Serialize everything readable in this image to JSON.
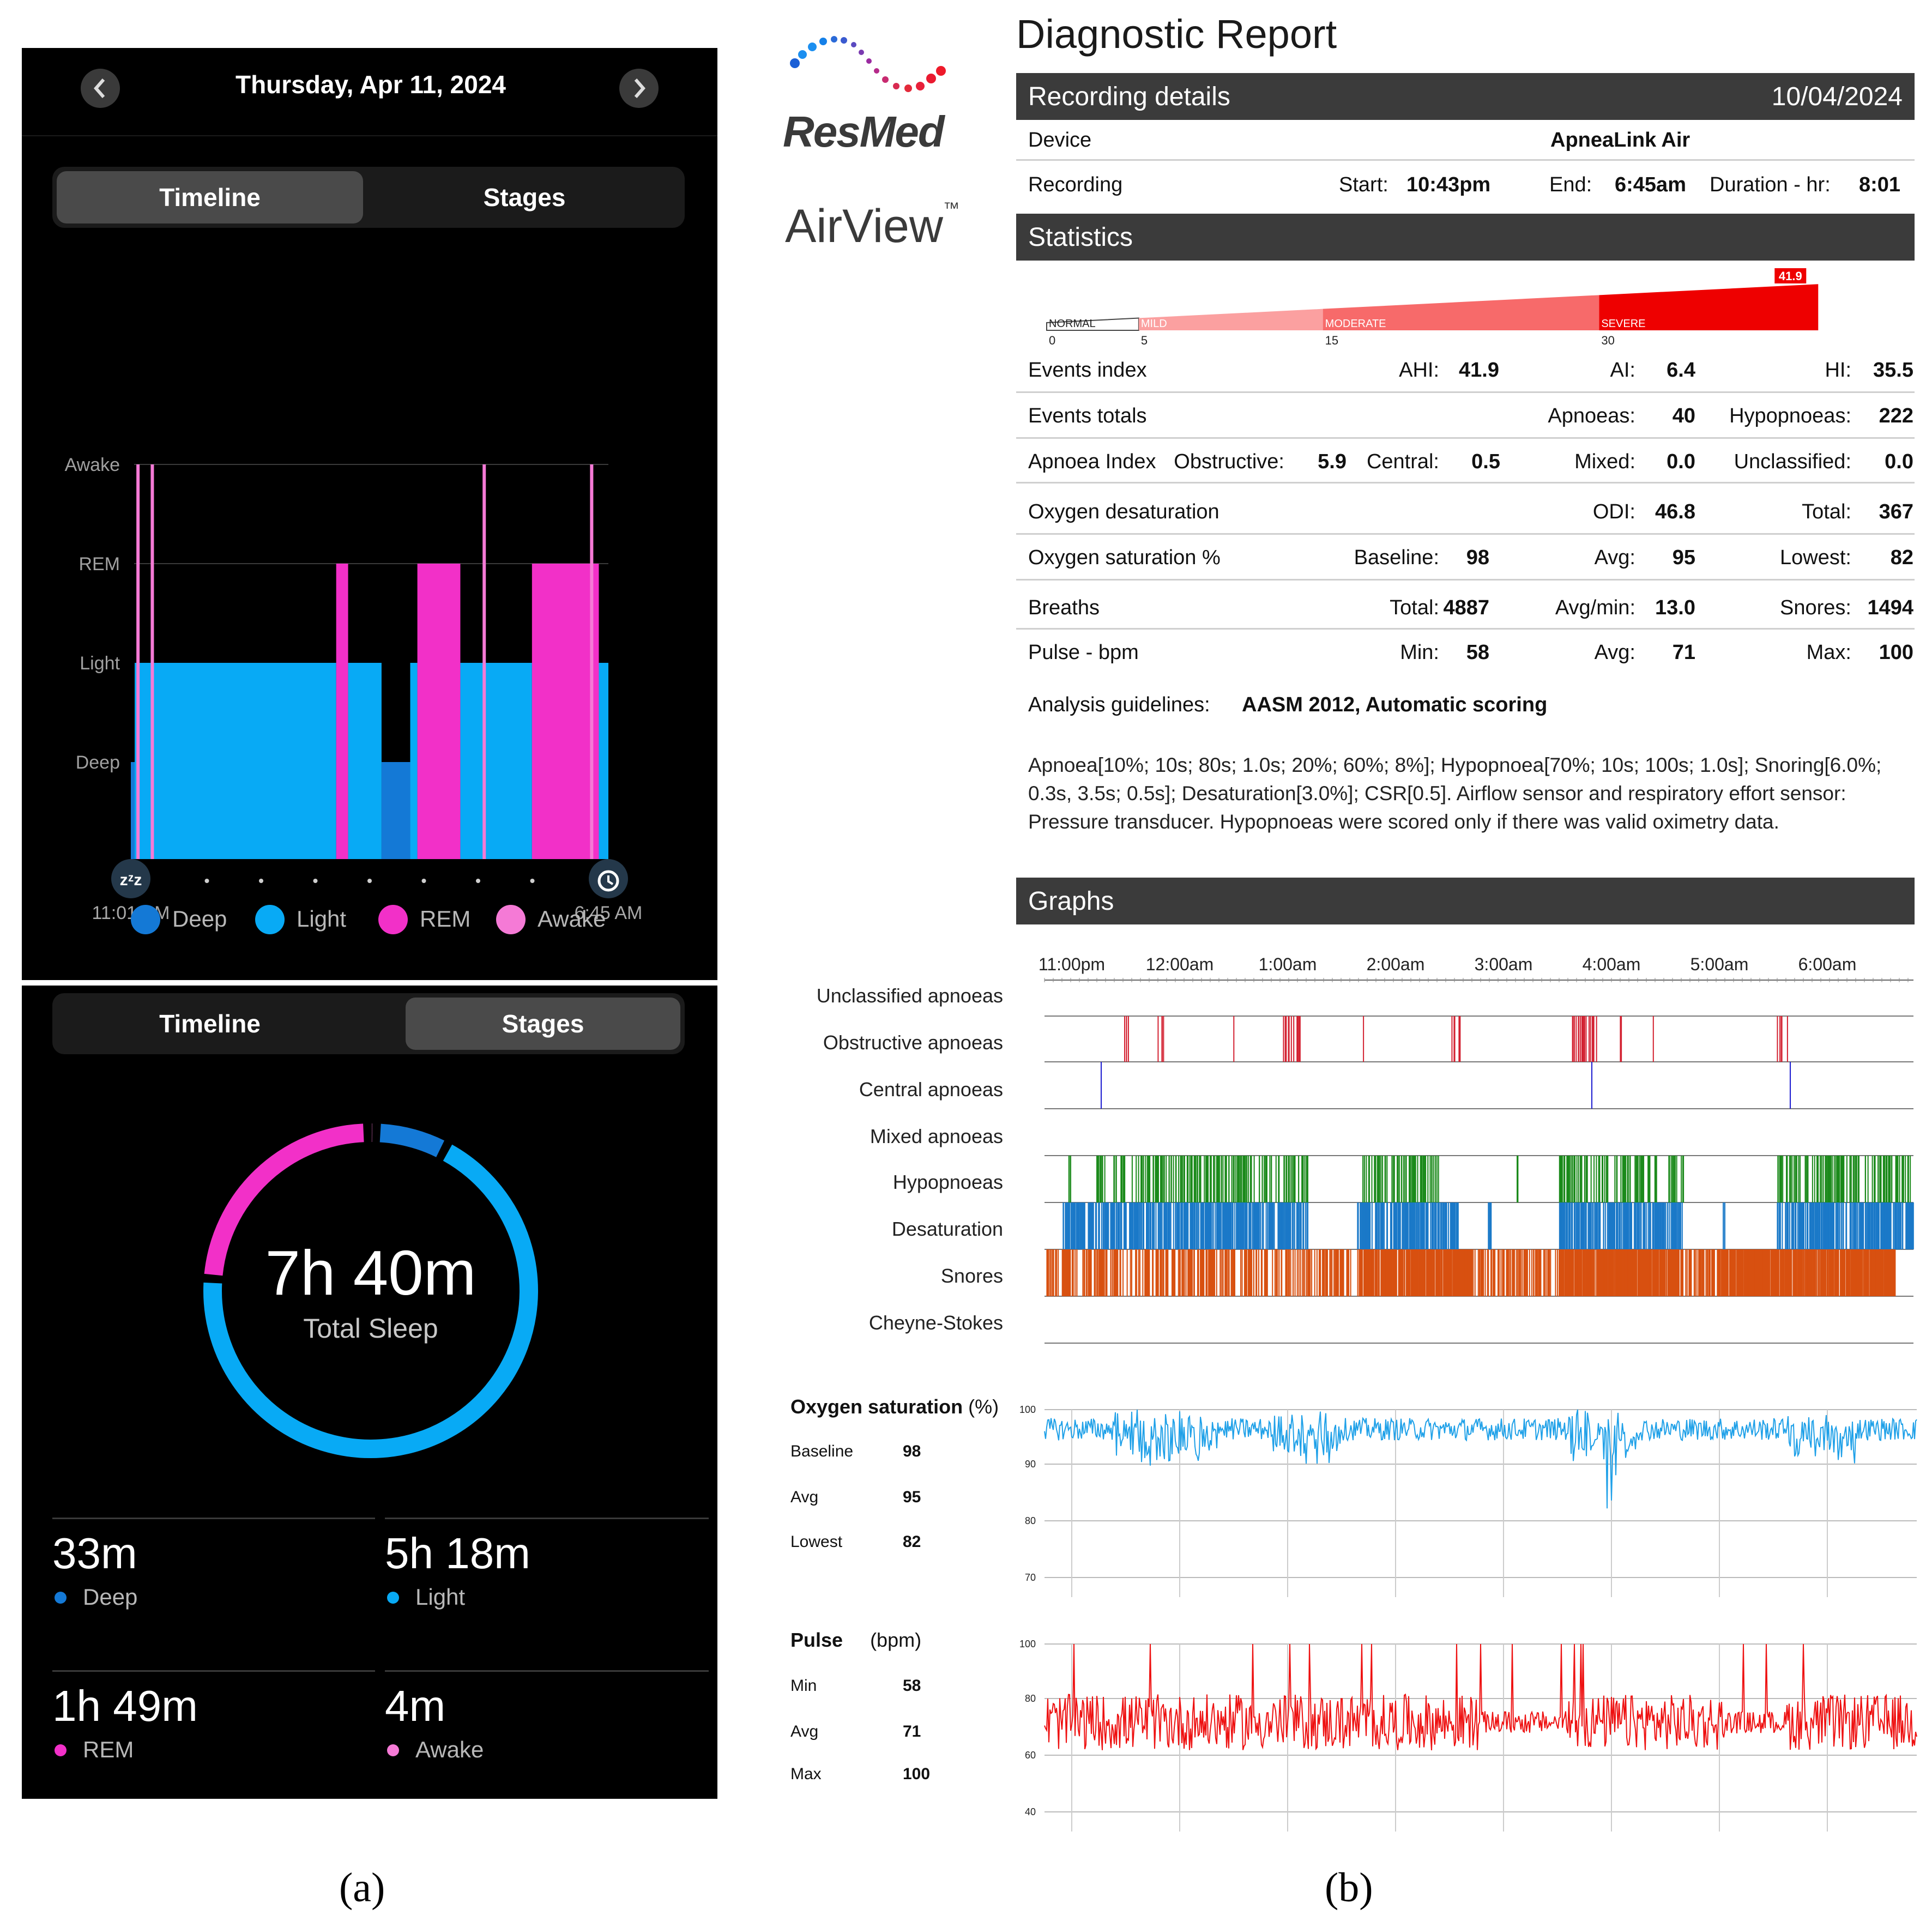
{
  "panel_a": {
    "header": {
      "date": "Thursday, Apr 11, 2024",
      "prev_icon": "chevron-left-icon",
      "next_icon": "chevron-right-icon"
    },
    "segment_top": {
      "tab1": "Timeline",
      "tab2": "Stages",
      "active": "Timeline"
    },
    "timeline_chart": {
      "type": "step",
      "y_levels": [
        "Awake",
        "REM",
        "Light",
        "Deep"
      ],
      "start_label": "11:01 PM",
      "end_label": "6:45 AM",
      "start_icon": "sleep-zzz-icon",
      "end_icon": "alarm-clock-icon",
      "colors": {
        "Deep": "#1479d6",
        "Light": "#08aaf5",
        "REM": "#f230c8",
        "Awake": "#f57ad6"
      },
      "segments": [
        {
          "stage": "Deep",
          "from": 0.0,
          "to": 0.008
        },
        {
          "stage": "Light",
          "from": 0.008,
          "to": 0.43
        },
        {
          "stage": "REM",
          "from": 0.43,
          "to": 0.455
        },
        {
          "stage": "Light",
          "from": 0.455,
          "to": 0.525
        },
        {
          "stage": "Deep",
          "from": 0.525,
          "to": 0.585
        },
        {
          "stage": "Light",
          "from": 0.585,
          "to": 0.6
        },
        {
          "stage": "REM",
          "from": 0.6,
          "to": 0.69
        },
        {
          "stage": "Light",
          "from": 0.69,
          "to": 0.84
        },
        {
          "stage": "REM",
          "from": 0.84,
          "to": 0.98
        },
        {
          "stage": "Light",
          "from": 0.98,
          "to": 1.0
        }
      ],
      "awake_spikes": [
        0.015,
        0.045,
        0.74,
        0.965
      ]
    },
    "legend": [
      {
        "label": "Deep",
        "color": "#1479d6"
      },
      {
        "label": "Light",
        "color": "#08aaf5"
      },
      {
        "label": "REM",
        "color": "#f230c8"
      },
      {
        "label": "Awake",
        "color": "#f57ad6"
      }
    ],
    "segment_bottom": {
      "tab1": "Timeline",
      "tab2": "Stages",
      "active": "Stages"
    },
    "donut": {
      "total": "7h 40m",
      "total_label": "Total Sleep",
      "slices": [
        {
          "stage": "Light",
          "minutes": 318,
          "color": "#08aaf5"
        },
        {
          "stage": "REM",
          "minutes": 109,
          "color": "#f230c8"
        },
        {
          "stage": "Awake",
          "minutes": 4,
          "color": "#f57ad6"
        },
        {
          "stage": "Deep",
          "minutes": 33,
          "color": "#1479d6"
        }
      ]
    },
    "stats": [
      {
        "value": "33m",
        "label": "Deep",
        "color": "#1479d6"
      },
      {
        "value": "5h 18m",
        "label": "Light",
        "color": "#08aaf5"
      },
      {
        "value": "1h 49m",
        "label": "REM",
        "color": "#f230c8"
      },
      {
        "value": "4m",
        "label": "Awake",
        "color": "#f57ad6"
      }
    ]
  },
  "panel_b": {
    "brand": {
      "name": "ResMed",
      "product": "AirView",
      "tm": "™"
    },
    "title": "Diagnostic Report",
    "recording_bar": {
      "label": "Recording details",
      "date": "10/04/2024"
    },
    "device": {
      "label": "Device",
      "value": "ApneaLink Air"
    },
    "recording": {
      "label": "Recording",
      "start_label": "Start:",
      "start": "10:43pm",
      "end_label": "End:",
      "end": "6:45am",
      "dur_label": "Duration - hr:",
      "duration": "8:01"
    },
    "statistics_bar": "Statistics",
    "severity": {
      "value": "41.9",
      "labels": [
        "NORMAL",
        "MILD",
        "MODERATE",
        "SEVERE"
      ],
      "ticks": [
        "0",
        "5",
        "15",
        "30"
      ],
      "max": 45,
      "colors": [
        "#ffffff",
        "#fba0a0",
        "#f76a6a",
        "#ee0000"
      ]
    },
    "rows": [
      {
        "label": "Events index",
        "cells": [
          [
            "AHI:",
            "41.9"
          ],
          [
            "AI:",
            "6.4"
          ],
          [
            "HI:",
            "35.5"
          ]
        ]
      },
      {
        "label": "Events totals",
        "cells": [
          [
            "",
            ""
          ],
          [
            "Apnoeas:",
            "40"
          ],
          [
            "Hypopnoeas:",
            "222"
          ]
        ]
      },
      {
        "label": "Apnoea Index",
        "cells": [
          [
            "Obstructive:",
            "5.9"
          ],
          [
            "Central:",
            "0.5"
          ],
          [
            "Mixed:",
            "0.0"
          ],
          [
            "Unclassified:",
            "0.0"
          ]
        ]
      },
      {
        "label": "Oxygen desaturation",
        "cells": [
          [
            "",
            ""
          ],
          [
            "ODI:",
            "46.8"
          ],
          [
            "Total:",
            "367"
          ]
        ]
      },
      {
        "label": "Oxygen saturation %",
        "cells": [
          [
            "Baseline:",
            "98"
          ],
          [
            "Avg:",
            "95"
          ],
          [
            "Lowest:",
            "82"
          ]
        ]
      },
      {
        "label": "Breaths",
        "cells": [
          [
            "Total:",
            "4887"
          ],
          [
            "Avg/min:",
            "13.0"
          ],
          [
            "Snores:",
            "1494"
          ]
        ]
      },
      {
        "label": "Pulse - bpm",
        "cells": [
          [
            "Min:",
            "58"
          ],
          [
            "Avg:",
            "71"
          ],
          [
            "Max:",
            "100"
          ]
        ]
      }
    ],
    "analysis": {
      "label": "Analysis guidelines:",
      "value": "AASM 2012, Automatic scoring"
    },
    "analysis_text": "Apnoea[10%; 10s; 80s; 1.0s; 20%; 60%; 8%]; Hypopnoea[70%; 10s; 100s; 1.0s]; Snoring[6.0%; 0.3s, 3.5s; 0.5s]; Desaturation[3.0%]; CSR[0.5]. Airflow sensor and respiratory effort sensor: Pressure transducer. Hypopnoeas were scored only if there was valid oximetry data.",
    "graphs_bar": "Graphs",
    "time_ticks": [
      "11:00pm",
      "12:00am",
      "1:00am",
      "2:00am",
      "3:00am",
      "4:00am",
      "5:00am",
      "6:00am"
    ],
    "event_tracks": [
      {
        "label": "Unclassified apnoeas",
        "color": "#d32030"
      },
      {
        "label": "Obstructive apnoeas",
        "color": "#1b1bd0"
      },
      {
        "label": "Central apnoeas",
        "color": "#1b1bd0"
      },
      {
        "label": "Mixed apnoeas",
        "color": "#1b8a1b"
      },
      {
        "label": "Hypopnoeas",
        "color": "#1a79c8"
      },
      {
        "label": "Desaturation",
        "color": "#d85010"
      },
      {
        "label": "Snores",
        "color": "#d85010"
      },
      {
        "label": "Cheyne-Stokes",
        "color": "#888888"
      }
    ],
    "spo2": {
      "title": "Oxygen saturation",
      "unit": "(%)",
      "stats": [
        [
          "Baseline",
          "98"
        ],
        [
          "Avg",
          "95"
        ],
        [
          "Lowest",
          "82"
        ]
      ],
      "y_ticks": [
        "100",
        "90",
        "80",
        "70"
      ],
      "color": "#1ea0e8"
    },
    "pulse": {
      "title": "Pulse",
      "unit": "(bpm)",
      "stats": [
        [
          "Min",
          "58"
        ],
        [
          "Avg",
          "71"
        ],
        [
          "Max",
          "100"
        ]
      ],
      "y_ticks": [
        "100",
        "80",
        "60",
        "40"
      ],
      "color": "#ee1010"
    }
  },
  "captions": {
    "a": "(a)",
    "b": "(b)"
  }
}
